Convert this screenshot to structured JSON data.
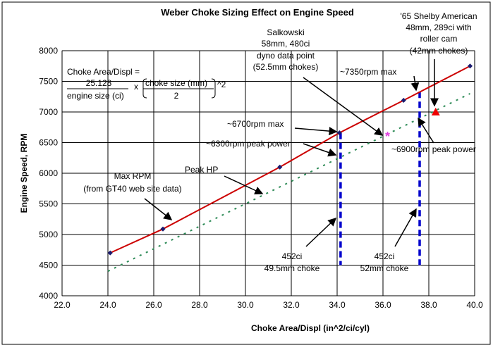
{
  "chart_data": {
    "type": "line",
    "title": "Weber Choke Sizing Effect on Engine Speed",
    "xlabel": "Choke Area/Displ (in^2/ci/cyl)",
    "ylabel": "Engine Speed, RPM",
    "xlim": [
      22,
      40
    ],
    "ylim": [
      4000,
      8000
    ],
    "xticks": [
      "22.0",
      "24.0",
      "26.0",
      "28.0",
      "30.0",
      "32.0",
      "34.0",
      "36.0",
      "38.0",
      "40.0"
    ],
    "yticks": [
      "4000",
      "4500",
      "5000",
      "5500",
      "6000",
      "6500",
      "7000",
      "7500",
      "8000"
    ],
    "grid": true,
    "series": [
      {
        "name": "Max RPM",
        "color": "#cc0000",
        "x": [
          24.1,
          26.4,
          31.5,
          34.1,
          36.9,
          39.8
        ],
        "y": [
          4700,
          5090,
          6100,
          6660,
          7190,
          7750
        ]
      },
      {
        "name": "Peak HP",
        "color": "#2e8b57",
        "x": [
          24.0,
          39.8
        ],
        "y": [
          4400,
          7300
        ]
      }
    ],
    "points": [
      {
        "name": "Salkowski",
        "x": 36.2,
        "y": 6600,
        "color": "#e040e0"
      },
      {
        "name": "Shelby",
        "x": 38.3,
        "y": 6990,
        "color": "#ee0000"
      }
    ],
    "vlines": [
      {
        "x": 34.15,
        "y0": 4500,
        "y1": 6660,
        "color": "#0000cc"
      },
      {
        "x": 37.6,
        "y0": 4500,
        "y1": 7330,
        "color": "#0000cc"
      }
    ],
    "formula": {
      "line1": "Choke Area/Displ =",
      "num": "25.128",
      "den": "engine size (ci)",
      "x": "x",
      "num2": "choke size (mm)",
      "den2": "2",
      "pow": "^2"
    },
    "annotations": {
      "max_rpm": [
        "Max RPM",
        "(from GT40 web site data)"
      ],
      "peak_hp": "Peak HP",
      "a6700": "~6700rpm max",
      "a6300": "~6300rpm peak power",
      "a7350": "~7350rpm max",
      "a6900": "~6900rpm peak power",
      "salkowski": [
        "Salkowski",
        "58mm, 480ci",
        "dyno data point",
        "(52.5mm chokes)"
      ],
      "shelby": [
        "'65 Shelby American",
        "48mm, 289ci with",
        "roller cam",
        "(42mm chokes)"
      ],
      "c452a": [
        "452ci",
        "49.5mm choke"
      ],
      "c452b": [
        "452ci",
        "52mm choke"
      ]
    }
  }
}
